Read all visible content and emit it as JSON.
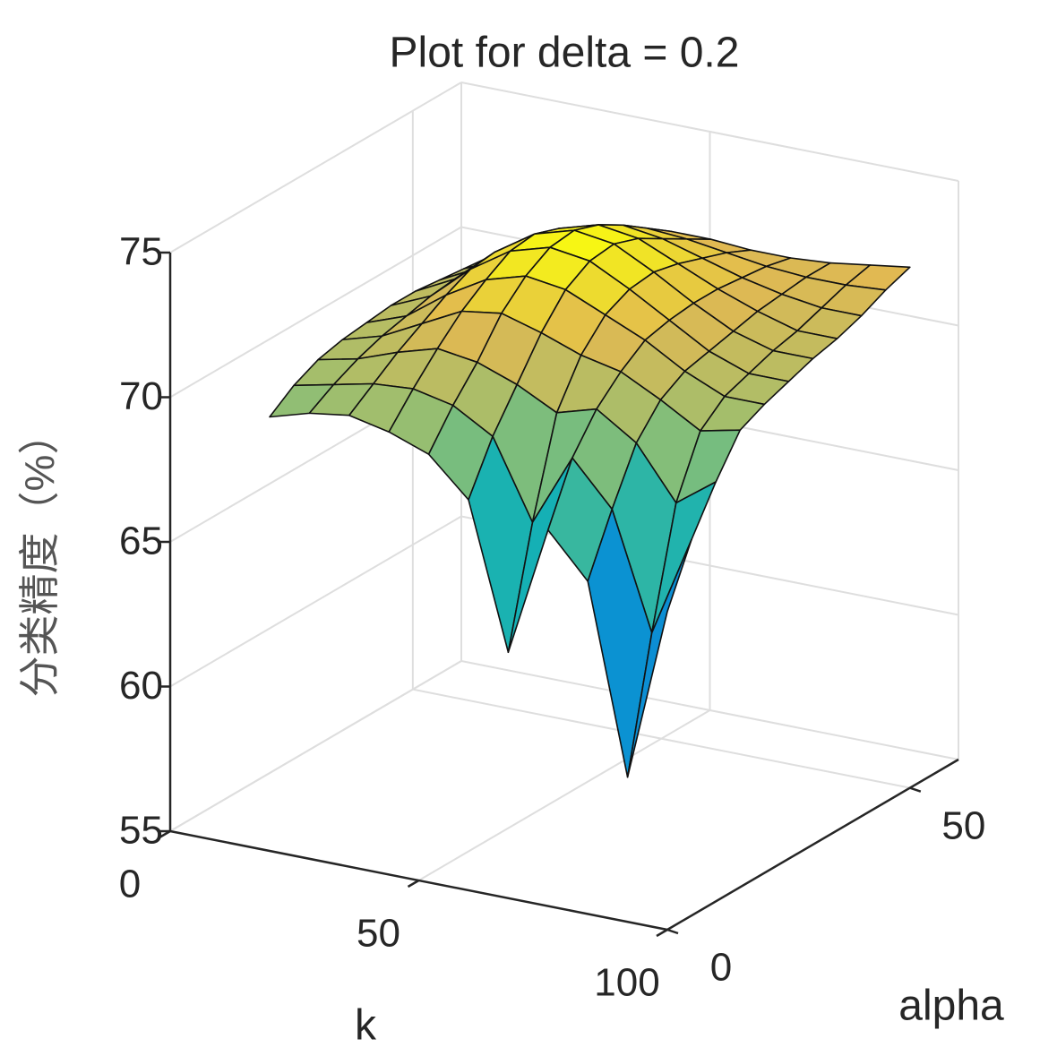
{
  "chart_data": {
    "type": "surface",
    "title": "Plot for delta = 0.2",
    "xlabel": "k",
    "ylabel": "alpha",
    "zlabel": "分类精度（%）",
    "x": [
      20,
      28,
      36,
      44,
      52,
      60,
      68,
      76,
      84,
      92,
      100
    ],
    "y": [
      0,
      5,
      10,
      15,
      20,
      25,
      30,
      35,
      40,
      45,
      50
    ],
    "z": [
      [
        70.0,
        70.4,
        70.6,
        70.3,
        69.8,
        68.5,
        63.5,
        68.0,
        66.5,
        60.0,
        66.0
      ],
      [
        70.6,
        70.9,
        71.2,
        71.3,
        71.0,
        70.2,
        67.5,
        70.0,
        68.5,
        64.5,
        68.0
      ],
      [
        71.0,
        71.3,
        71.8,
        72.2,
        72.0,
        71.5,
        70.8,
        71.2,
        70.3,
        68.5,
        69.5
      ],
      [
        71.2,
        71.6,
        72.3,
        73.0,
        73.2,
        72.8,
        72.3,
        72.0,
        71.3,
        70.5,
        70.8
      ],
      [
        71.3,
        71.8,
        72.8,
        73.6,
        74.0,
        73.8,
        73.2,
        72.6,
        71.8,
        71.2,
        71.2
      ],
      [
        71.4,
        72.0,
        73.2,
        74.1,
        74.5,
        74.3,
        73.6,
        72.8,
        72.0,
        71.5,
        71.5
      ],
      [
        71.4,
        72.1,
        73.3,
        74.2,
        74.6,
        74.4,
        73.7,
        72.9,
        72.2,
        71.8,
        71.8
      ],
      [
        71.3,
        72.0,
        73.0,
        73.9,
        74.3,
        74.1,
        73.5,
        72.9,
        72.4,
        72.0,
        72.0
      ],
      [
        71.2,
        71.8,
        72.6,
        73.4,
        73.8,
        73.6,
        73.2,
        72.8,
        72.5,
        72.3,
        72.3
      ],
      [
        71.1,
        71.6,
        72.2,
        72.8,
        73.2,
        73.1,
        72.9,
        72.7,
        72.6,
        72.6,
        72.7
      ],
      [
        71.0,
        71.4,
        71.9,
        72.3,
        72.6,
        72.6,
        72.5,
        72.5,
        72.6,
        72.8,
        73.0
      ]
    ],
    "colormap": "parula",
    "xlim": [
      0,
      100
    ],
    "ylim": [
      0,
      60
    ],
    "zlim": [
      55,
      75
    ],
    "xticks": [
      0,
      50,
      100
    ],
    "yticks": [
      0,
      50
    ],
    "zticks": [
      55,
      60,
      65,
      70,
      75
    ],
    "grid": true
  }
}
